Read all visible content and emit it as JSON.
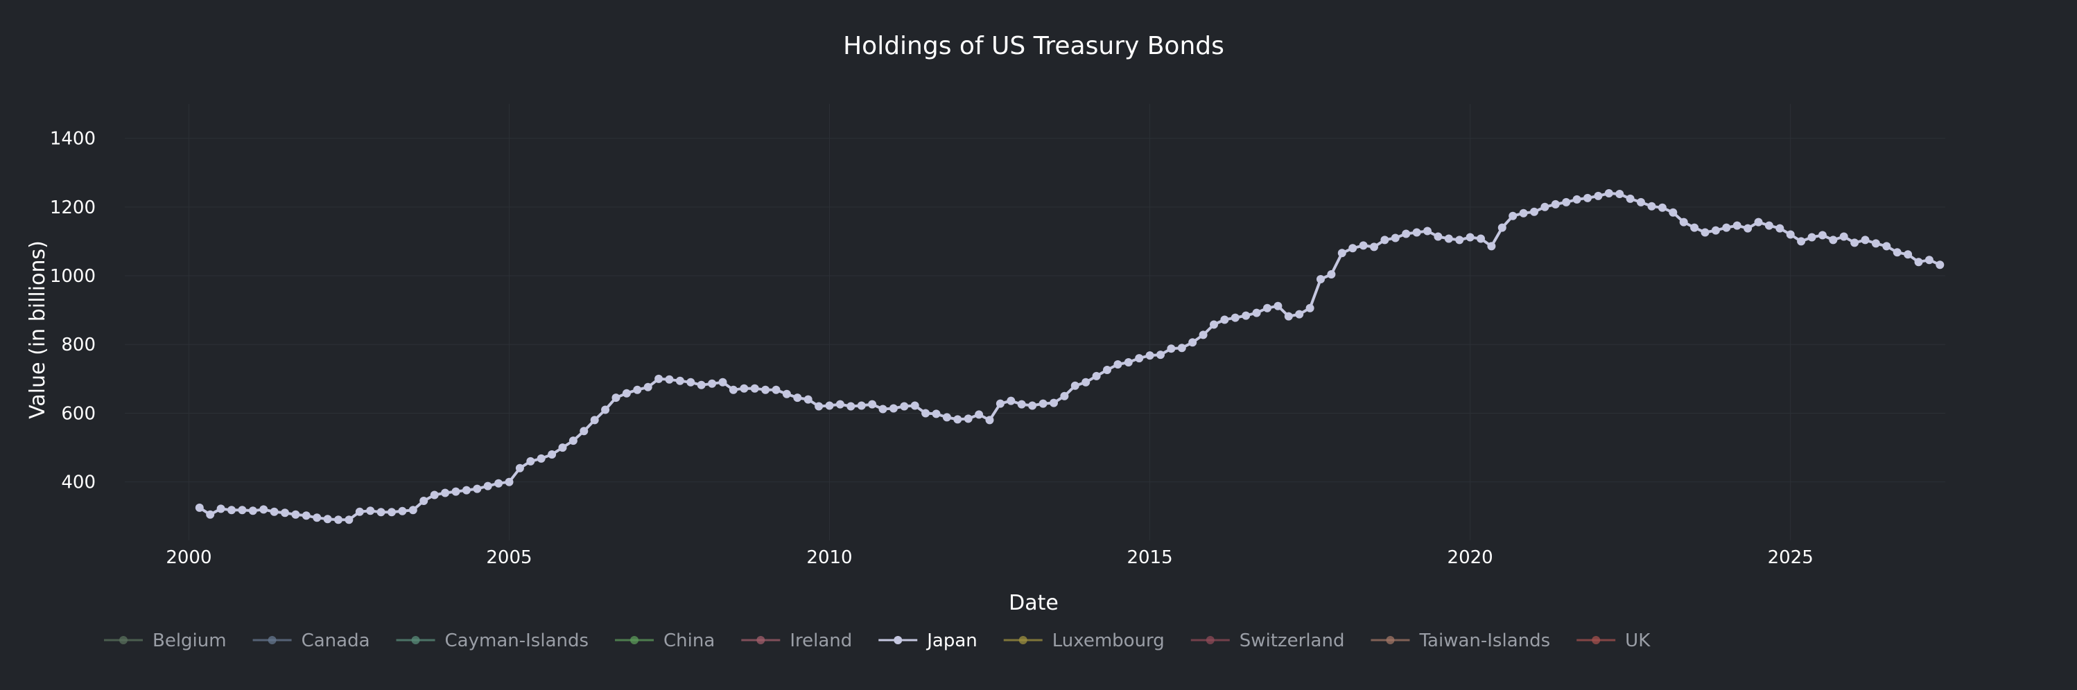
{
  "chart_data": {
    "type": "line",
    "title": "Holdings of US Treasury Bonds",
    "xlabel": "Date",
    "ylabel": "Value (in billions)",
    "xlim": [
      "1999-01-01",
      "2027-06-01"
    ],
    "ylim": [
      230,
      1500
    ],
    "x_ticks": [
      "2000",
      "2005",
      "2010",
      "2015",
      "2020",
      "2025"
    ],
    "y_ticks": [
      400,
      600,
      800,
      1000,
      1200,
      1400
    ],
    "grid": true,
    "legend_position": "bottom-left",
    "background_color": "#22252a",
    "legend": [
      {
        "name": "Belgium",
        "color": "#59705c",
        "active": false
      },
      {
        "name": "Canada",
        "color": "#66778f",
        "active": false
      },
      {
        "name": "Cayman-Islands",
        "color": "#5a8c7a",
        "active": false
      },
      {
        "name": "China",
        "color": "#5c9a5a",
        "active": false
      },
      {
        "name": "Ireland",
        "color": "#a05d6b",
        "active": false
      },
      {
        "name": "Japan",
        "color": "#c5c7e0",
        "active": true
      },
      {
        "name": "Luxembourg",
        "color": "#9e9040",
        "active": false
      },
      {
        "name": "Switzerland",
        "color": "#8e4a57",
        "active": false
      },
      {
        "name": "Taiwan-Islands",
        "color": "#a07565",
        "active": false
      },
      {
        "name": "UK",
        "color": "#a3504e",
        "active": false
      }
    ],
    "series": [
      {
        "name": "Japan",
        "color": "#c5c7e0",
        "points": [
          [
            "2000-03",
            325
          ],
          [
            "2000-05",
            305
          ],
          [
            "2000-07",
            322
          ],
          [
            "2000-09",
            318
          ],
          [
            "2000-11",
            318
          ],
          [
            "2001-01",
            316
          ],
          [
            "2001-03",
            320
          ],
          [
            "2001-05",
            313
          ],
          [
            "2001-07",
            310
          ],
          [
            "2001-09",
            305
          ],
          [
            "2001-11",
            302
          ],
          [
            "2002-01",
            296
          ],
          [
            "2002-03",
            292
          ],
          [
            "2002-05",
            290
          ],
          [
            "2002-07",
            290
          ],
          [
            "2002-09",
            313
          ],
          [
            "2002-11",
            316
          ],
          [
            "2003-01",
            312
          ],
          [
            "2003-03",
            312
          ],
          [
            "2003-05",
            315
          ],
          [
            "2003-07",
            318
          ],
          [
            "2003-09",
            345
          ],
          [
            "2003-11",
            362
          ],
          [
            "2004-01",
            368
          ],
          [
            "2004-03",
            372
          ],
          [
            "2004-05",
            376
          ],
          [
            "2004-07",
            380
          ],
          [
            "2004-09",
            388
          ],
          [
            "2004-11",
            396
          ],
          [
            "2005-01",
            400
          ],
          [
            "2005-03",
            440
          ],
          [
            "2005-05",
            460
          ],
          [
            "2005-07",
            468
          ],
          [
            "2005-09",
            480
          ],
          [
            "2005-11",
            500
          ],
          [
            "2006-01",
            520
          ],
          [
            "2006-03",
            548
          ],
          [
            "2006-05",
            580
          ],
          [
            "2006-07",
            610
          ],
          [
            "2006-09",
            645
          ],
          [
            "2006-11",
            658
          ],
          [
            "2007-01",
            668
          ],
          [
            "2007-03",
            676
          ],
          [
            "2007-05",
            700
          ],
          [
            "2007-07",
            698
          ],
          [
            "2007-09",
            694
          ],
          [
            "2007-11",
            690
          ],
          [
            "2008-01",
            682
          ],
          [
            "2008-03",
            686
          ],
          [
            "2008-05",
            690
          ],
          [
            "2008-07",
            668
          ],
          [
            "2008-09",
            672
          ],
          [
            "2008-11",
            672
          ],
          [
            "2009-01",
            668
          ],
          [
            "2009-03",
            668
          ],
          [
            "2009-05",
            656
          ],
          [
            "2009-07",
            645
          ],
          [
            "2009-09",
            640
          ],
          [
            "2009-11",
            620
          ],
          [
            "2010-01",
            622
          ],
          [
            "2010-03",
            626
          ],
          [
            "2010-05",
            620
          ],
          [
            "2010-07",
            622
          ],
          [
            "2010-09",
            626
          ],
          [
            "2010-11",
            612
          ],
          [
            "2011-01",
            614
          ],
          [
            "2011-03",
            620
          ],
          [
            "2011-05",
            622
          ],
          [
            "2011-07",
            600
          ],
          [
            "2011-09",
            598
          ],
          [
            "2011-11",
            588
          ],
          [
            "2012-01",
            582
          ],
          [
            "2012-03",
            584
          ],
          [
            "2012-05",
            596
          ],
          [
            "2012-07",
            580
          ],
          [
            "2012-09",
            628
          ],
          [
            "2012-11",
            636
          ],
          [
            "2013-01",
            626
          ],
          [
            "2013-03",
            622
          ],
          [
            "2013-05",
            628
          ],
          [
            "2013-07",
            630
          ],
          [
            "2013-09",
            650
          ],
          [
            "2013-11",
            680
          ],
          [
            "2014-01",
            690
          ],
          [
            "2014-03",
            708
          ],
          [
            "2014-05",
            726
          ],
          [
            "2014-07",
            742
          ],
          [
            "2014-09",
            748
          ],
          [
            "2014-11",
            760
          ],
          [
            "2015-01",
            768
          ],
          [
            "2015-03",
            770
          ],
          [
            "2015-05",
            788
          ],
          [
            "2015-07",
            790
          ],
          [
            "2015-09",
            806
          ],
          [
            "2015-11",
            828
          ],
          [
            "2016-01",
            858
          ],
          [
            "2016-03",
            872
          ],
          [
            "2016-05",
            878
          ],
          [
            "2016-07",
            884
          ],
          [
            "2016-09",
            892
          ],
          [
            "2016-11",
            906
          ],
          [
            "2017-01",
            912
          ],
          [
            "2017-03",
            882
          ],
          [
            "2017-05",
            888
          ],
          [
            "2017-07",
            906
          ],
          [
            "2017-09",
            990
          ],
          [
            "2017-11",
            1004
          ],
          [
            "2018-01",
            1066
          ],
          [
            "2018-03",
            1080
          ],
          [
            "2018-05",
            1088
          ],
          [
            "2018-07",
            1084
          ],
          [
            "2018-09",
            1104
          ],
          [
            "2018-11",
            1110
          ],
          [
            "2019-01",
            1122
          ],
          [
            "2019-03",
            1126
          ],
          [
            "2019-05",
            1130
          ],
          [
            "2019-07",
            1114
          ],
          [
            "2019-09",
            1108
          ],
          [
            "2019-11",
            1104
          ],
          [
            "2020-01",
            1112
          ],
          [
            "2020-03",
            1108
          ],
          [
            "2020-05",
            1086
          ],
          [
            "2020-07",
            1140
          ],
          [
            "2020-09",
            1174
          ],
          [
            "2020-11",
            1182
          ],
          [
            "2021-01",
            1186
          ],
          [
            "2021-03",
            1200
          ],
          [
            "2021-05",
            1208
          ],
          [
            "2021-07",
            1214
          ],
          [
            "2021-09",
            1222
          ],
          [
            "2021-11",
            1226
          ],
          [
            "2022-01",
            1232
          ],
          [
            "2022-03",
            1240
          ],
          [
            "2022-05",
            1238
          ],
          [
            "2022-07",
            1224
          ],
          [
            "2022-09",
            1214
          ],
          [
            "2022-11",
            1202
          ],
          [
            "2023-01",
            1198
          ],
          [
            "2023-03",
            1184
          ],
          [
            "2023-05",
            1156
          ],
          [
            "2023-07",
            1140
          ],
          [
            "2023-09",
            1126
          ],
          [
            "2023-11",
            1132
          ],
          [
            "2024-01",
            1140
          ],
          [
            "2024-03",
            1146
          ],
          [
            "2024-05",
            1138
          ],
          [
            "2024-07",
            1156
          ],
          [
            "2024-09",
            1146
          ],
          [
            "2024-11",
            1138
          ],
          [
            "2025-01",
            1120
          ],
          [
            "2025-03",
            1100
          ],
          [
            "2025-05",
            1112
          ],
          [
            "2025-07",
            1118
          ],
          [
            "2025-09",
            1104
          ],
          [
            "2025-11",
            1114
          ],
          [
            "2026-01",
            1096
          ],
          [
            "2026-03",
            1104
          ],
          [
            "2026-05",
            1094
          ],
          [
            "2026-07",
            1086
          ],
          [
            "2026-09",
            1068
          ],
          [
            "2026-11",
            1062
          ],
          [
            "2027-01",
            1040
          ],
          [
            "2027-03",
            1046
          ],
          [
            "2027-05",
            1032
          ]
        ]
      }
    ]
  }
}
